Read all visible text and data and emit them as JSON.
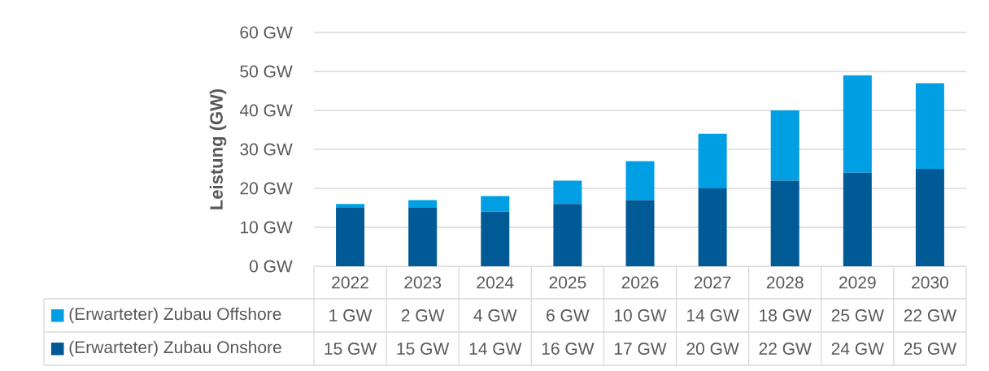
{
  "chart_data": {
    "type": "bar",
    "stacked": true,
    "ylabel": "Leistung (GW)",
    "categories": [
      "2022",
      "2023",
      "2024",
      "2025",
      "2026",
      "2027",
      "2028",
      "2029",
      "2030"
    ],
    "series": [
      {
        "name": "(Erwarteter) Zubau Onshore",
        "color": "#005a96",
        "values": [
          15,
          15,
          14,
          16,
          17,
          20,
          22,
          24,
          25
        ],
        "value_labels": [
          "15 GW",
          "15 GW",
          "14 GW",
          "16 GW",
          "17 GW",
          "20 GW",
          "22 GW",
          "24 GW",
          "25 GW"
        ]
      },
      {
        "name": "(Erwarteter) Zubau Offshore",
        "color": "#009fe3",
        "values": [
          1,
          2,
          4,
          6,
          10,
          14,
          18,
          25,
          22
        ],
        "value_labels": [
          "1 GW",
          "2 GW",
          "4 GW",
          "6 GW",
          "10 GW",
          "14 GW",
          "18 GW",
          "25 GW",
          "22 GW"
        ]
      }
    ],
    "ylim": [
      0,
      60
    ],
    "yticks": [
      {
        "value": 0,
        "label": "0 GW"
      },
      {
        "value": 10,
        "label": "10 GW"
      },
      {
        "value": 20,
        "label": "20 GW"
      },
      {
        "value": 30,
        "label": "30 GW"
      },
      {
        "value": 40,
        "label": "40 GW"
      },
      {
        "value": 50,
        "label": "50 GW"
      },
      {
        "value": 60,
        "label": "60 GW"
      }
    ],
    "grid": "y",
    "legend": "bottom"
  }
}
